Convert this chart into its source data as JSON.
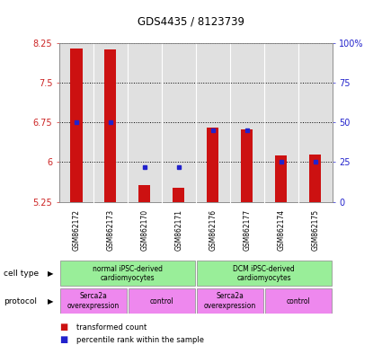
{
  "title": "GDS4435 / 8123739",
  "samples": [
    "GSM862172",
    "GSM862173",
    "GSM862170",
    "GSM862171",
    "GSM862176",
    "GSM862177",
    "GSM862174",
    "GSM862175"
  ],
  "transformed_counts": [
    8.15,
    8.13,
    5.57,
    5.52,
    6.65,
    6.62,
    6.12,
    6.15
  ],
  "percentile_ranks": [
    50,
    50,
    22,
    22,
    45,
    45,
    25,
    25
  ],
  "ylim": [
    5.25,
    8.25
  ],
  "yticks": [
    5.25,
    6.0,
    6.75,
    7.5,
    8.25
  ],
  "ytick_labels": [
    "5.25",
    "6",
    "6.75",
    "7.5",
    "8.25"
  ],
  "right_yticks": [
    0,
    25,
    50,
    75,
    100
  ],
  "right_ytick_labels": [
    "0",
    "25",
    "50",
    "75",
    "100%"
  ],
  "bar_color": "#cc1111",
  "dot_color": "#2222cc",
  "cell_type_groups": [
    {
      "label": "normal iPSC-derived\ncardiomyocytes",
      "start": 0,
      "end": 4,
      "color": "#99ee99"
    },
    {
      "label": "DCM iPSC-derived\ncardiomyocytes",
      "start": 4,
      "end": 8,
      "color": "#99ee99"
    }
  ],
  "protocol_groups": [
    {
      "label": "Serca2a\noverexpression",
      "start": 0,
      "end": 2,
      "color": "#ee88ee"
    },
    {
      "label": "control",
      "start": 2,
      "end": 4,
      "color": "#ee88ee"
    },
    {
      "label": "Serca2a\noverexpression",
      "start": 4,
      "end": 6,
      "color": "#ee88ee"
    },
    {
      "label": "control",
      "start": 6,
      "end": 8,
      "color": "#ee88ee"
    }
  ],
  "cell_type_label": "cell type",
  "protocol_label": "protocol",
  "legend_bar_label": "transformed count",
  "legend_dot_label": "percentile rank within the sample",
  "plot_bg": "#e0e0e0",
  "bar_width": 0.35,
  "base_value": 5.25
}
